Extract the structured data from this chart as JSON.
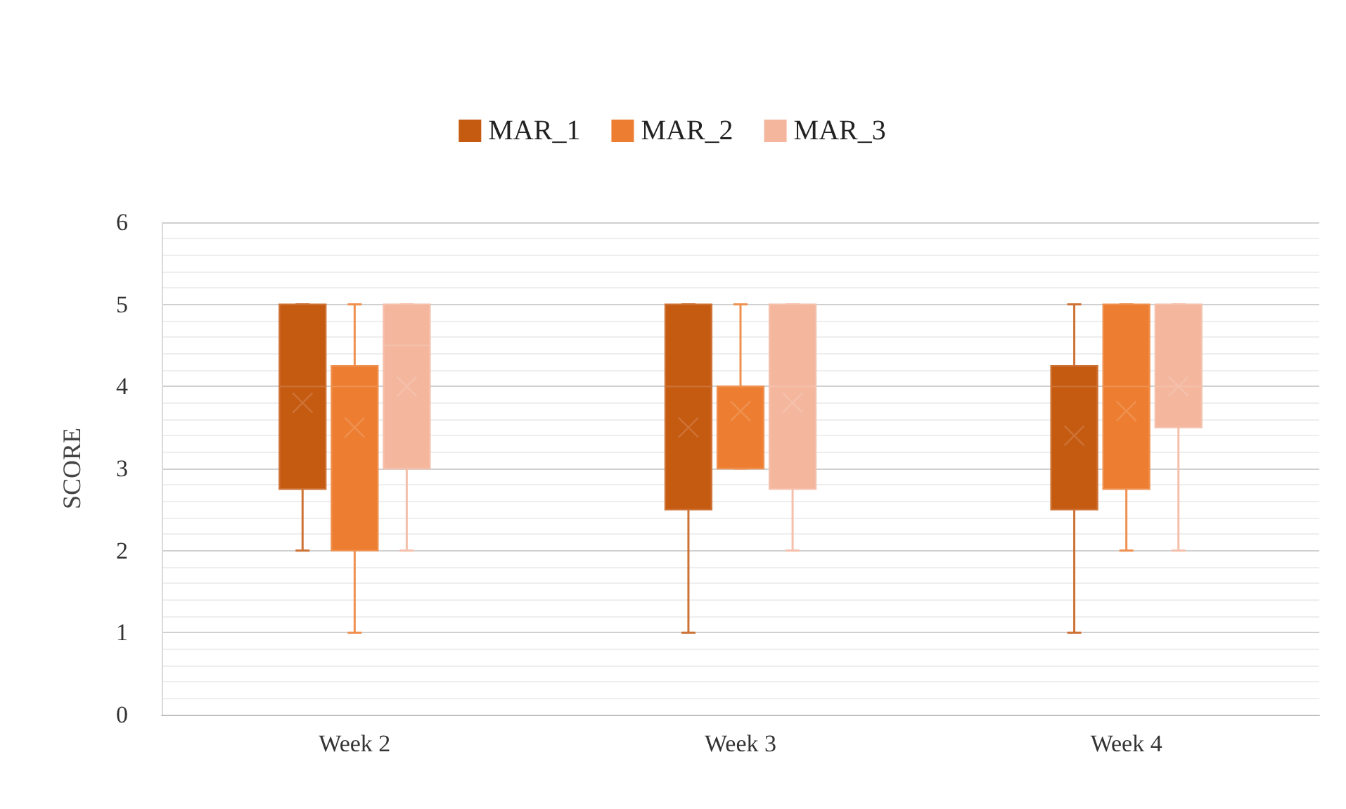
{
  "chart_data": {
    "type": "box",
    "ylabel": "SCORE",
    "categories": [
      "Week 2",
      "Week 3",
      "Week 4"
    ],
    "series": [
      {
        "name": "MAR_1",
        "color": "#c55a11",
        "boxes": [
          {
            "low": 2,
            "q1": 2.75,
            "median": 4,
            "q3": 5,
            "high": 5,
            "mean": 3.8
          },
          {
            "low": 1,
            "q1": 2.5,
            "median": 4,
            "q3": 5,
            "high": 5,
            "mean": 3.5
          },
          {
            "low": 1,
            "q1": 2.5,
            "median": 4,
            "q3": 4.25,
            "high": 5,
            "mean": 3.4
          }
        ]
      },
      {
        "name": "MAR_2",
        "color": "#ed7d31",
        "boxes": [
          {
            "low": 1,
            "q1": 2,
            "median": 4,
            "q3": 4.25,
            "high": 5,
            "mean": 3.5
          },
          {
            "low": 3,
            "q1": 3,
            "median": 4,
            "q3": 4,
            "high": 5,
            "mean": 3.7
          },
          {
            "low": 2,
            "q1": 2.75,
            "median": 4,
            "q3": 5,
            "high": 5,
            "mean": 3.7
          }
        ]
      },
      {
        "name": "MAR_3",
        "color": "#f4b69d",
        "boxes": [
          {
            "low": 2,
            "q1": 3,
            "median": 4.5,
            "q3": 5,
            "high": 5,
            "mean": 4.0
          },
          {
            "low": 2,
            "q1": 2.75,
            "median": 4,
            "q3": 5,
            "high": 5,
            "mean": 3.8
          },
          {
            "low": 2,
            "q1": 3.5,
            "median": 4,
            "q3": 5,
            "high": 5,
            "mean": 4.0
          }
        ]
      }
    ],
    "ylim": [
      0,
      6
    ],
    "yticks": [
      0,
      1,
      2,
      3,
      4,
      5,
      6
    ],
    "grid": "y",
    "legend": "top"
  }
}
